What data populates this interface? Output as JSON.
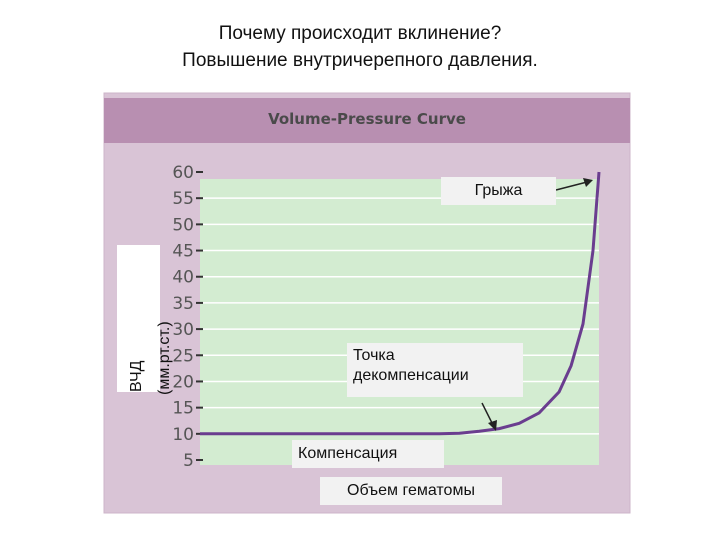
{
  "page": {
    "title_line1": "Почему происходит вклинение?",
    "title_line2": "Повышение внутричерепного давления."
  },
  "chart_data": {
    "type": "line",
    "title": "Volume-Pressure Curve",
    "ylabel_line1": "ВЧД",
    "ylabel_line2": "(мм.рт.ст.)",
    "xlabel": "Объем гематомы",
    "yticks": [
      5,
      10,
      15,
      20,
      25,
      30,
      35,
      40,
      45,
      50,
      55,
      60
    ],
    "ylim": [
      5,
      60
    ],
    "xlim": [
      0,
      1
    ],
    "grid": true,
    "series": [
      {
        "x": [
          0,
          0.5,
          0.55,
          0.6,
          0.65,
          0.7,
          0.75,
          0.8,
          0.85,
          0.9,
          0.93,
          0.96,
          0.985,
          1.0
        ],
        "y": [
          10,
          10,
          10,
          10,
          10.1,
          10.5,
          11,
          12,
          14,
          18,
          23,
          31,
          45,
          60
        ]
      }
    ],
    "annotations": {
      "herniation": "Грыжа",
      "decompensation_line1": "Точка",
      "decompensation_line2": "декомпенсации",
      "compensation": "Компенсация"
    },
    "colors": {
      "frame": "#d9c4d6",
      "title_bar": "#b88fb1",
      "plot_bg": "#d3ecd1",
      "curve": "#6a3d8f",
      "grid": "#ffffff"
    }
  }
}
